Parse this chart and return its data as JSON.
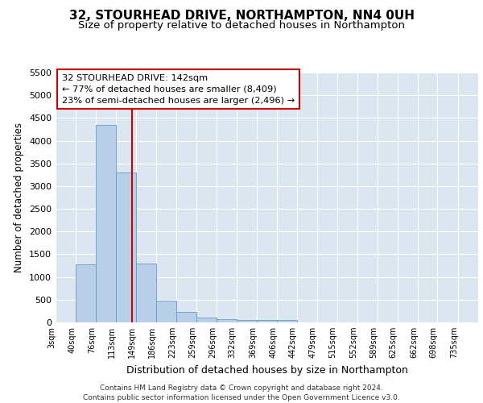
{
  "title": "32, STOURHEAD DRIVE, NORTHAMPTON, NN4 0UH",
  "subtitle": "Size of property relative to detached houses in Northampton",
  "xlabel": "Distribution of detached houses by size in Northampton",
  "ylabel": "Number of detached properties",
  "footer_line1": "Contains HM Land Registry data © Crown copyright and database right 2024.",
  "footer_line2": "Contains public sector information licensed under the Open Government Licence v3.0.",
  "annotation_line1": "32 STOURHEAD DRIVE: 142sqm",
  "annotation_line2": "← 77% of detached houses are smaller (8,409)",
  "annotation_line3": "23% of semi-detached houses are larger (2,496) →",
  "bar_color": "#b8cfe8",
  "bar_edge_color": "#6899c8",
  "vline_color": "#cc0000",
  "vline_x": 142,
  "categories": [
    "3sqm",
    "40sqm",
    "76sqm",
    "113sqm",
    "149sqm",
    "186sqm",
    "223sqm",
    "259sqm",
    "296sqm",
    "332sqm",
    "369sqm",
    "406sqm",
    "442sqm",
    "479sqm",
    "515sqm",
    "552sqm",
    "589sqm",
    "625sqm",
    "662sqm",
    "698sqm",
    "735sqm"
  ],
  "bin_edges": [
    3,
    40,
    76,
    113,
    149,
    186,
    223,
    259,
    296,
    332,
    369,
    406,
    442,
    479,
    515,
    552,
    589,
    625,
    662,
    698,
    735,
    772
  ],
  "values": [
    0,
    1275,
    4350,
    3300,
    1300,
    480,
    230,
    100,
    75,
    50,
    50,
    50,
    0,
    0,
    0,
    0,
    0,
    0,
    0,
    0,
    0
  ],
  "ylim": [
    0,
    5500
  ],
  "yticks": [
    0,
    500,
    1000,
    1500,
    2000,
    2500,
    3000,
    3500,
    4000,
    4500,
    5000,
    5500
  ],
  "background_color": "#dce6f0",
  "title_fontsize": 11,
  "subtitle_fontsize": 9.5,
  "annotation_box_color": "#ffffff",
  "annotation_box_edge": "#cc0000"
}
